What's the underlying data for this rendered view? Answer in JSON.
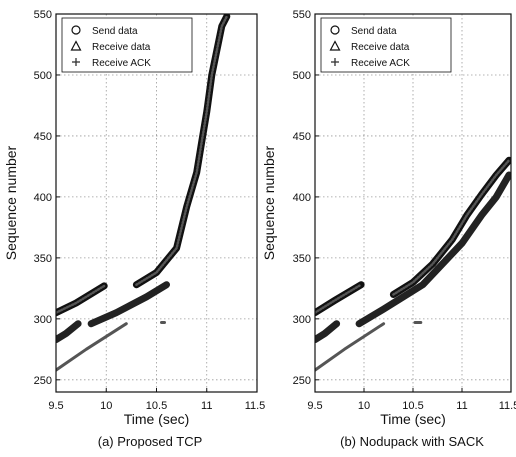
{
  "chart_data": [
    {
      "type": "scatter",
      "caption": "(a) Proposed TCP",
      "xlabel": "Time (sec)",
      "ylabel": "Sequence number",
      "xlim": [
        9.5,
        11.5
      ],
      "ylim": [
        240,
        550
      ],
      "xticks": [
        "9.5",
        "10",
        "10.5",
        "11",
        "11.5"
      ],
      "yticks": [
        "250",
        "300",
        "350",
        "400",
        "450",
        "500",
        "550"
      ],
      "grid": true,
      "legend_position": "top-left",
      "series": [
        {
          "name": "Send data",
          "marker": "circle",
          "segments": [
            [
              [
                9.5,
                305
              ],
              [
                9.7,
                313
              ],
              [
                9.98,
                327
              ]
            ],
            [
              [
                10.3,
                328
              ],
              [
                10.5,
                338
              ],
              [
                10.7,
                358
              ],
              [
                10.8,
                392
              ],
              [
                10.9,
                420
              ],
              [
                10.95,
                445
              ],
              [
                11.0,
                470
              ],
              [
                11.05,
                500
              ],
              [
                11.1,
                520
              ],
              [
                11.15,
                540
              ],
              [
                11.2,
                548
              ]
            ]
          ]
        },
        {
          "name": "Receive data",
          "marker": "triangle",
          "segments": [
            [
              [
                9.5,
                283
              ],
              [
                9.6,
                288
              ],
              [
                9.72,
                296
              ]
            ],
            [
              [
                9.85,
                296
              ],
              [
                10.1,
                305
              ],
              [
                10.4,
                318
              ],
              [
                10.6,
                328
              ]
            ]
          ]
        },
        {
          "name": "Receive ACK",
          "marker": "plus",
          "segments": [
            [
              [
                9.5,
                258
              ],
              [
                9.8,
                275
              ],
              [
                10.2,
                296
              ]
            ],
            [
              [
                10.55,
                297
              ],
              [
                10.58,
                297
              ]
            ]
          ]
        }
      ]
    },
    {
      "type": "scatter",
      "caption": "(b) Nodupack with SACK",
      "xlabel": "Time (sec)",
      "ylabel": "Sequence number",
      "xlim": [
        9.5,
        11.5
      ],
      "ylim": [
        240,
        550
      ],
      "xticks": [
        "9.5",
        "10",
        "10.5",
        "11",
        "11.5"
      ],
      "yticks": [
        "250",
        "300",
        "350",
        "400",
        "450",
        "500",
        "550"
      ],
      "grid": true,
      "legend_position": "top-left",
      "series": [
        {
          "name": "Send data",
          "marker": "circle",
          "segments": [
            [
              [
                9.5,
                305
              ],
              [
                9.7,
                315
              ],
              [
                9.97,
                328
              ]
            ],
            [
              [
                10.3,
                320
              ],
              [
                10.5,
                330
              ],
              [
                10.7,
                345
              ],
              [
                10.9,
                365
              ],
              [
                11.05,
                385
              ],
              [
                11.2,
                402
              ],
              [
                11.35,
                418
              ],
              [
                11.48,
                430
              ]
            ]
          ]
        },
        {
          "name": "Receive data",
          "marker": "triangle",
          "segments": [
            [
              [
                9.5,
                283
              ],
              [
                9.6,
                288
              ],
              [
                9.72,
                296
              ]
            ],
            [
              [
                9.95,
                296
              ],
              [
                10.2,
                308
              ],
              [
                10.4,
                318
              ],
              [
                10.6,
                328
              ],
              [
                10.8,
                345
              ],
              [
                11.0,
                362
              ],
              [
                11.2,
                385
              ],
              [
                11.35,
                400
              ],
              [
                11.48,
                418
              ]
            ]
          ]
        },
        {
          "name": "Receive ACK",
          "marker": "plus",
          "segments": [
            [
              [
                9.5,
                258
              ],
              [
                9.8,
                275
              ],
              [
                10.2,
                296
              ]
            ],
            [
              [
                10.52,
                297
              ],
              [
                10.58,
                297
              ]
            ]
          ]
        }
      ]
    }
  ]
}
